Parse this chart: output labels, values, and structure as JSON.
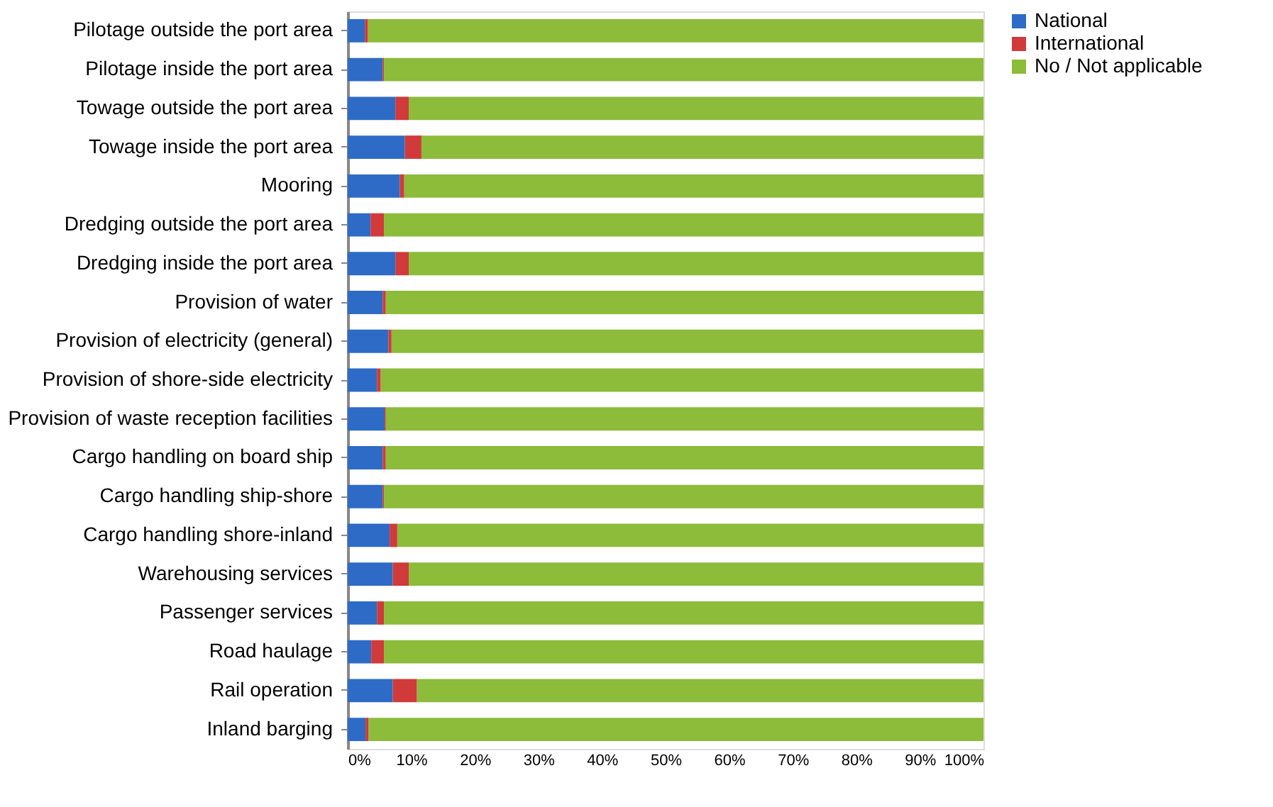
{
  "chart_data": {
    "type": "bar",
    "orientation": "horizontal",
    "stacked": true,
    "categories": [
      "Pilotage outside the port area",
      "Pilotage inside the port area",
      "Towage outside the port area",
      "Towage inside the port area",
      "Mooring",
      "Dredging outside the port area",
      "Dredging inside the port area",
      "Provision of water",
      "Provision of electricity (general)",
      "Provision of shore-side electricity",
      "Provision of waste reception facilities",
      "Cargo handling on board ship",
      "Cargo handling ship-shore",
      "Cargo handling shore-inland",
      "Warehousing services",
      "Passenger services",
      "Road haulage",
      "Rail operation",
      "Inland barging"
    ],
    "series": [
      {
        "name": "National",
        "color": "#2e6bc6",
        "values": [
          2.7,
          5.5,
          7.5,
          9.0,
          8.2,
          3.6,
          7.5,
          5.5,
          6.4,
          4.6,
          5.8,
          5.5,
          5.5,
          6.6,
          7.1,
          4.6,
          3.7,
          7.1,
          2.8
        ]
      },
      {
        "name": "International",
        "color": "#d03a3a",
        "values": [
          0.5,
          0.2,
          2.1,
          2.6,
          0.7,
          2.1,
          2.1,
          0.5,
          0.5,
          0.6,
          0.2,
          0.5,
          0.2,
          1.2,
          2.5,
          1.1,
          2.0,
          3.8,
          0.5
        ]
      },
      {
        "name": "No / Not applicable",
        "color": "#8dbb3a",
        "values": [
          96.8,
          94.3,
          90.4,
          88.4,
          91.1,
          94.3,
          90.4,
          94.0,
          93.1,
          94.8,
          94.0,
          94.0,
          94.3,
          92.2,
          90.4,
          94.3,
          94.3,
          89.1,
          96.7
        ]
      }
    ],
    "xlim": [
      0,
      100
    ],
    "xticks": [
      {
        "value": 0,
        "label": "0%"
      },
      {
        "value": 10,
        "label": "10%"
      },
      {
        "value": 20,
        "label": "20%"
      },
      {
        "value": 30,
        "label": "30%"
      },
      {
        "value": 40,
        "label": "40%"
      },
      {
        "value": 50,
        "label": "50%"
      },
      {
        "value": 60,
        "label": "60%"
      },
      {
        "value": 70,
        "label": "70%"
      },
      {
        "value": 80,
        "label": "80%"
      },
      {
        "value": 90,
        "label": "90%"
      },
      {
        "value": 100,
        "label": "100%"
      }
    ],
    "grid": false,
    "legend": "right"
  }
}
